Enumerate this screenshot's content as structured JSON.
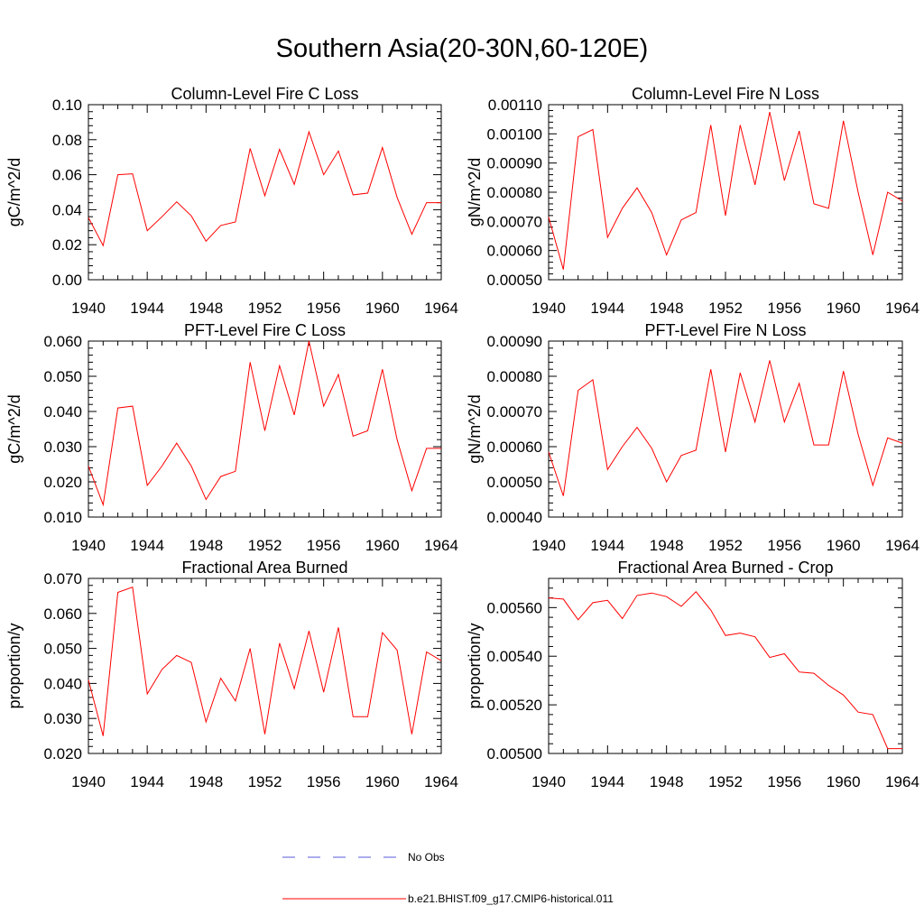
{
  "page": {
    "title": "Southern Asia(20-30N,60-120E)"
  },
  "legend": {
    "obs_label": "No Obs",
    "model_label": "b.e21.BHIST.f09_g17.CMIP6-historical.011",
    "obs_color": "#5a5ad8",
    "model_color": "#ff0000"
  },
  "chart_data": [
    {
      "type": "line",
      "title": "Column-Level Fire C Loss",
      "ylabel": "gC/m^2/d",
      "xlim": [
        1940,
        1964
      ],
      "ylim": [
        0.0,
        0.1
      ],
      "yticks": [
        "0.00",
        "0.02",
        "0.04",
        "0.06",
        "0.08",
        "0.10"
      ],
      "xticks": [
        "1940",
        "1944",
        "1948",
        "1952",
        "1956",
        "1960",
        "1964"
      ],
      "series": [
        {
          "x": [
            1940,
            1941,
            1942,
            1943,
            1944,
            1945,
            1946,
            1947,
            1948,
            1949,
            1950,
            1951,
            1952,
            1953,
            1954,
            1955,
            1956,
            1957,
            1958,
            1959,
            1960,
            1961,
            1962,
            1963,
            1964
          ],
          "values": [
            0.0355,
            0.0195,
            0.06,
            0.0605,
            0.028,
            0.036,
            0.0445,
            0.0365,
            0.022,
            0.031,
            0.033,
            0.075,
            0.048,
            0.0745,
            0.0545,
            0.0845,
            0.06,
            0.0735,
            0.0485,
            0.0495,
            0.0755,
            0.047,
            0.026,
            0.044,
            0.044
          ]
        }
      ]
    },
    {
      "type": "line",
      "title": "Column-Level Fire N Loss",
      "ylabel": "gN/m^2/d",
      "xlim": [
        1940,
        1964
      ],
      "ylim": [
        0.0005,
        0.0011
      ],
      "yticks": [
        "0.00050",
        "0.00060",
        "0.00070",
        "0.00080",
        "0.00090",
        "0.00100",
        "0.00110"
      ],
      "xticks": [
        "1940",
        "1944",
        "1948",
        "1952",
        "1956",
        "1960",
        "1964"
      ],
      "series": [
        {
          "x": [
            1940,
            1941,
            1942,
            1943,
            1944,
            1945,
            1946,
            1947,
            1948,
            1949,
            1950,
            1951,
            1952,
            1953,
            1954,
            1955,
            1956,
            1957,
            1958,
            1959,
            1960,
            1961,
            1962,
            1963,
            1964
          ],
          "values": [
            0.000715,
            0.000535,
            0.00099,
            0.001015,
            0.000645,
            0.000745,
            0.000815,
            0.00073,
            0.000585,
            0.000705,
            0.00073,
            0.00103,
            0.00072,
            0.00103,
            0.000825,
            0.001075,
            0.00084,
            0.00101,
            0.00076,
            0.000745,
            0.001045,
            0.0008,
            0.000585,
            0.0008,
            0.00077
          ]
        }
      ]
    },
    {
      "type": "line",
      "title": "PFT-Level Fire C Loss",
      "ylabel": "gC/m^2/d",
      "xlim": [
        1940,
        1964
      ],
      "ylim": [
        0.01,
        0.06
      ],
      "yticks": [
        "0.010",
        "0.020",
        "0.030",
        "0.040",
        "0.050",
        "0.060"
      ],
      "xticks": [
        "1940",
        "1944",
        "1948",
        "1952",
        "1956",
        "1960",
        "1964"
      ],
      "series": [
        {
          "x": [
            1940,
            1941,
            1942,
            1943,
            1944,
            1945,
            1946,
            1947,
            1948,
            1949,
            1950,
            1951,
            1952,
            1953,
            1954,
            1955,
            1956,
            1957,
            1958,
            1959,
            1960,
            1961,
            1962,
            1963,
            1964
          ],
          "values": [
            0.0245,
            0.0135,
            0.041,
            0.0415,
            0.019,
            0.0245,
            0.031,
            0.0245,
            0.015,
            0.0215,
            0.023,
            0.054,
            0.0345,
            0.053,
            0.039,
            0.06,
            0.0415,
            0.0505,
            0.033,
            0.0345,
            0.052,
            0.032,
            0.0175,
            0.0295,
            0.0295
          ]
        }
      ]
    },
    {
      "type": "line",
      "title": "PFT-Level Fire N Loss",
      "ylabel": "gN/m^2/d",
      "xlim": [
        1940,
        1964
      ],
      "ylim": [
        0.0004,
        0.0009
      ],
      "yticks": [
        "0.00040",
        "0.00050",
        "0.00060",
        "0.00070",
        "0.00080",
        "0.00090"
      ],
      "xticks": [
        "1940",
        "1944",
        "1948",
        "1952",
        "1956",
        "1960",
        "1964"
      ],
      "series": [
        {
          "x": [
            1940,
            1941,
            1942,
            1943,
            1944,
            1945,
            1946,
            1947,
            1948,
            1949,
            1950,
            1951,
            1952,
            1953,
            1954,
            1955,
            1956,
            1957,
            1958,
            1959,
            1960,
            1961,
            1962,
            1963,
            1964
          ],
          "values": [
            0.000585,
            0.00046,
            0.00076,
            0.00079,
            0.000535,
            0.0006,
            0.000655,
            0.000595,
            0.0005,
            0.000575,
            0.00059,
            0.00082,
            0.000585,
            0.00081,
            0.00067,
            0.000845,
            0.00067,
            0.00078,
            0.000605,
            0.000605,
            0.000815,
            0.000635,
            0.00049,
            0.000625,
            0.00061
          ]
        }
      ]
    },
    {
      "type": "line",
      "title": "Fractional Area Burned",
      "ylabel": "proportion/y",
      "xlim": [
        1940,
        1964
      ],
      "ylim": [
        0.02,
        0.07
      ],
      "yticks": [
        "0.020",
        "0.030",
        "0.040",
        "0.050",
        "0.060",
        "0.070"
      ],
      "xticks": [
        "1940",
        "1944",
        "1948",
        "1952",
        "1956",
        "1960",
        "1964"
      ],
      "series": [
        {
          "x": [
            1940,
            1941,
            1942,
            1943,
            1944,
            1945,
            1946,
            1947,
            1948,
            1949,
            1950,
            1951,
            1952,
            1953,
            1954,
            1955,
            1956,
            1957,
            1958,
            1959,
            1960,
            1961,
            1962,
            1963,
            1964
          ],
          "values": [
            0.041,
            0.025,
            0.066,
            0.0675,
            0.037,
            0.044,
            0.048,
            0.046,
            0.029,
            0.0415,
            0.035,
            0.05,
            0.0255,
            0.0515,
            0.0385,
            0.055,
            0.0375,
            0.056,
            0.0305,
            0.0305,
            0.0545,
            0.0495,
            0.0255,
            0.049,
            0.0465
          ]
        }
      ]
    },
    {
      "type": "line",
      "title": "Fractional Area Burned - Crop",
      "ylabel": "proportion/y",
      "xlim": [
        1940,
        1964
      ],
      "ylim": [
        0.005,
        0.00572
      ],
      "yticks": [
        "0.00500",
        "0.00520",
        "0.00540",
        "0.00560"
      ],
      "xticks": [
        "1940",
        "1944",
        "1948",
        "1952",
        "1956",
        "1960",
        "1964"
      ],
      "series": [
        {
          "x": [
            1940,
            1941,
            1942,
            1943,
            1944,
            1945,
            1946,
            1947,
            1948,
            1949,
            1950,
            1951,
            1952,
            1953,
            1954,
            1955,
            1956,
            1957,
            1958,
            1959,
            1960,
            1961,
            1962,
            1963,
            1964
          ],
          "values": [
            0.00564,
            0.005635,
            0.00555,
            0.00562,
            0.00563,
            0.005555,
            0.00565,
            0.00566,
            0.005645,
            0.005605,
            0.005665,
            0.00559,
            0.005485,
            0.005495,
            0.00548,
            0.005395,
            0.00541,
            0.005335,
            0.00533,
            0.00528,
            0.00524,
            0.00517,
            0.00516,
            0.00502,
            0.00502
          ]
        }
      ]
    }
  ]
}
